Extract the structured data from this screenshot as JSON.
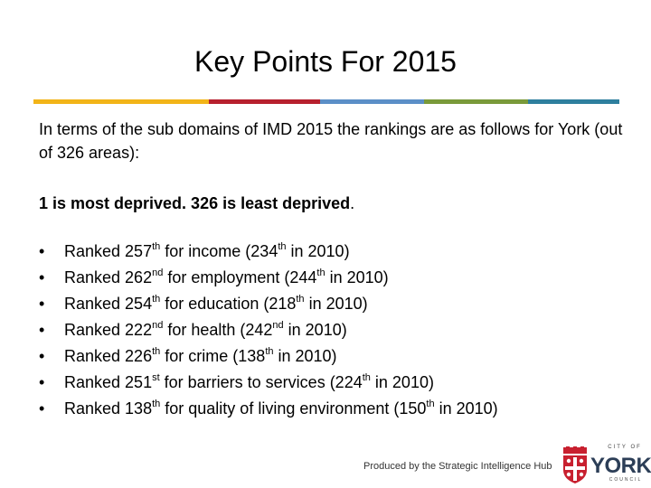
{
  "title": "Key Points For 2015",
  "divider_colors": [
    "#f2b418",
    "#b7202e",
    "#5b8fc7",
    "#7a9a3a",
    "#2e7f9e"
  ],
  "intro": "In terms of the sub domains of IMD 2015 the rankings are as follows for York (out of 326 areas):",
  "emphasis": {
    "text": "1 is most deprived.  326 is least deprived",
    "period": "."
  },
  "points": [
    {
      "a": "Ranked 257",
      "s1": "th",
      "b": " for income (234",
      "s2": "th",
      "c": " in 2010)"
    },
    {
      "a": "Ranked 262",
      "s1": "nd",
      "b": " for employment (244",
      "s2": "th",
      "c": " in 2010)"
    },
    {
      "a": "Ranked 254",
      "s1": "th",
      "b": " for education (218",
      "s2": "th",
      "c": " in 2010)"
    },
    {
      "a": "Ranked 222",
      "s1": "nd",
      "b": " for health (242",
      "s2": "nd",
      "c": " in 2010)"
    },
    {
      "a": "Ranked 226",
      "s1": "th",
      "b": "  for crime (138",
      "s2": "th",
      "c": " in 2010)"
    },
    {
      "a": "Ranked 251",
      "s1": "st",
      "b": " for barriers to services (224",
      "s2": "th",
      "c": " in 2010)"
    },
    {
      "a": "Ranked 138",
      "s1": "th",
      "b": " for quality of living environment (150",
      "s2": "th",
      "c": " in 2010)"
    }
  ],
  "bullet": "•",
  "footer": "Produced by the Strategic Intelligence Hub",
  "logo": {
    "city_of": "CITY OF",
    "name": "YORK",
    "council": "COUNCIL",
    "icon": "york-crest-icon",
    "brand_color": "#c8202f"
  }
}
